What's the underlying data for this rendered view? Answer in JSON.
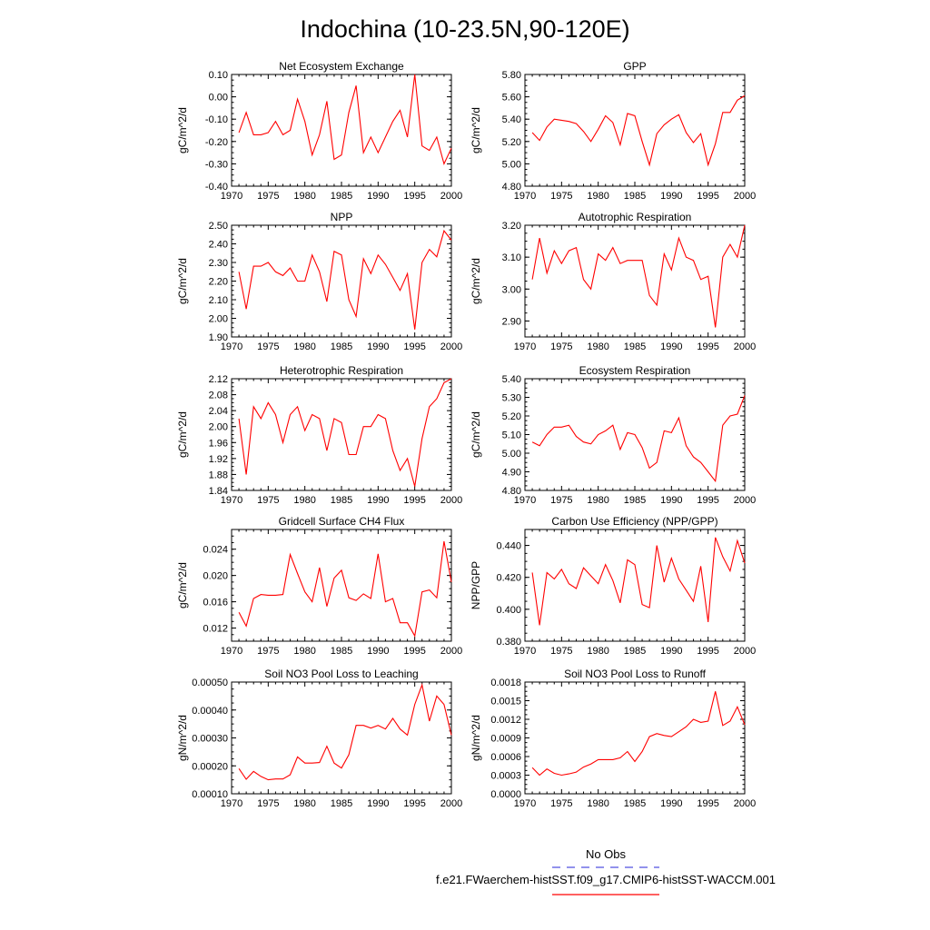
{
  "title": "Indochina (10-23.5N,90-120E)",
  "legend": [
    {
      "label": "No Obs",
      "color": "#5050e0",
      "dashed": true
    },
    {
      "label": "f.e21.FWaerchem-histSST.f09_g17.CMIP6-histSST-WACCM.001",
      "color": "#ff0000",
      "dashed": false
    }
  ],
  "chart_data": [
    {
      "type": "line",
      "title": "Net Ecosystem Exchange",
      "ylabel": "gC/m^2/d",
      "xlim": [
        1970,
        2000
      ],
      "ylim": [
        -0.4,
        0.1
      ],
      "x_ticks": [
        1970,
        1975,
        1980,
        1985,
        1990,
        1995,
        2000
      ],
      "y_ticks": [
        "0.10",
        "0.00",
        "-0.10",
        "-0.20",
        "-0.30",
        "-0.40"
      ],
      "y_tick_values": [
        0.1,
        0.0,
        -0.1,
        -0.2,
        -0.3,
        -0.4
      ],
      "series": [
        {
          "color": "#ff0000",
          "x_start": 1971,
          "values": [
            -0.16,
            -0.07,
            -0.17,
            -0.17,
            -0.16,
            -0.11,
            -0.17,
            -0.15,
            -0.01,
            -0.11,
            -0.26,
            -0.17,
            -0.02,
            -0.28,
            -0.26,
            -0.07,
            0.05,
            -0.25,
            -0.18,
            -0.25,
            -0.18,
            -0.11,
            -0.06,
            -0.18,
            0.1,
            -0.22,
            -0.24,
            -0.18,
            -0.3,
            -0.23
          ]
        }
      ]
    },
    {
      "type": "line",
      "title": "GPP",
      "ylabel": "gC/m^2/d",
      "xlim": [
        1970,
        2000
      ],
      "ylim": [
        4.8,
        5.8
      ],
      "x_ticks": [
        1970,
        1975,
        1980,
        1985,
        1990,
        1995,
        2000
      ],
      "y_ticks": [
        "5.80",
        "5.60",
        "5.40",
        "5.20",
        "5.00",
        "4.80"
      ],
      "y_tick_values": [
        5.8,
        5.6,
        5.4,
        5.2,
        5.0,
        4.8
      ],
      "series": [
        {
          "color": "#ff0000",
          "x_start": 1971,
          "values": [
            5.28,
            5.21,
            5.33,
            5.4,
            5.39,
            5.38,
            5.36,
            5.29,
            5.2,
            5.31,
            5.43,
            5.37,
            5.17,
            5.45,
            5.43,
            5.2,
            4.99,
            5.27,
            5.35,
            5.4,
            5.44,
            5.28,
            5.19,
            5.27,
            4.99,
            5.18,
            5.46,
            5.46,
            5.57,
            5.61
          ]
        }
      ]
    },
    {
      "type": "line",
      "title": "NPP",
      "ylabel": "gC/m^2/d",
      "xlim": [
        1970,
        2000
      ],
      "ylim": [
        1.9,
        2.5
      ],
      "x_ticks": [
        1970,
        1975,
        1980,
        1985,
        1990,
        1995,
        2000
      ],
      "y_ticks": [
        "2.50",
        "2.40",
        "2.30",
        "2.20",
        "2.10",
        "2.00",
        "1.90"
      ],
      "y_tick_values": [
        2.5,
        2.4,
        2.3,
        2.2,
        2.1,
        2.0,
        1.9
      ],
      "series": [
        {
          "color": "#ff0000",
          "x_start": 1971,
          "values": [
            2.25,
            2.05,
            2.28,
            2.28,
            2.3,
            2.25,
            2.23,
            2.27,
            2.2,
            2.2,
            2.34,
            2.25,
            2.09,
            2.36,
            2.34,
            2.1,
            2.01,
            2.32,
            2.24,
            2.34,
            2.29,
            2.22,
            2.15,
            2.24,
            1.94,
            2.3,
            2.37,
            2.33,
            2.47,
            2.42
          ]
        }
      ]
    },
    {
      "type": "line",
      "title": "Autotrophic Respiration",
      "ylabel": "gC/m^2/d",
      "xlim": [
        1970,
        2000
      ],
      "ylim": [
        2.85,
        3.2
      ],
      "x_ticks": [
        1970,
        1975,
        1980,
        1985,
        1990,
        1995,
        2000
      ],
      "y_ticks": [
        "3.20",
        "3.10",
        "3.00",
        "2.90"
      ],
      "y_tick_values": [
        3.2,
        3.1,
        3.0,
        2.9
      ],
      "series": [
        {
          "color": "#ff0000",
          "x_start": 1971,
          "values": [
            3.03,
            3.16,
            3.05,
            3.12,
            3.08,
            3.12,
            3.13,
            3.03,
            3.0,
            3.11,
            3.09,
            3.13,
            3.08,
            3.09,
            3.09,
            3.09,
            2.98,
            2.95,
            3.11,
            3.06,
            3.16,
            3.1,
            3.09,
            3.03,
            3.04,
            2.88,
            3.1,
            3.14,
            3.1,
            3.2
          ]
        }
      ]
    },
    {
      "type": "line",
      "title": "Heterotrophic Respiration",
      "ylabel": "gC/m^2/d",
      "xlim": [
        1970,
        2000
      ],
      "ylim": [
        1.84,
        2.12
      ],
      "x_ticks": [
        1970,
        1975,
        1980,
        1985,
        1990,
        1995,
        2000
      ],
      "y_ticks": [
        "2.12",
        "2.08",
        "2.04",
        "2.00",
        "1.96",
        "1.92",
        "1.88",
        "1.84"
      ],
      "y_tick_values": [
        2.12,
        2.08,
        2.04,
        2.0,
        1.96,
        1.92,
        1.88,
        1.84
      ],
      "series": [
        {
          "color": "#ff0000",
          "x_start": 1971,
          "values": [
            2.02,
            1.88,
            2.05,
            2.02,
            2.06,
            2.03,
            1.96,
            2.03,
            2.05,
            1.99,
            2.03,
            2.02,
            1.94,
            2.02,
            2.01,
            1.93,
            1.93,
            2.0,
            2.0,
            2.03,
            2.02,
            1.94,
            1.89,
            1.92,
            1.85,
            1.97,
            2.05,
            2.07,
            2.11,
            2.12
          ]
        }
      ]
    },
    {
      "type": "line",
      "title": "Ecosystem Respiration",
      "ylabel": "gC/m^2/d",
      "xlim": [
        1970,
        2000
      ],
      "ylim": [
        4.8,
        5.4
      ],
      "x_ticks": [
        1970,
        1975,
        1980,
        1985,
        1990,
        1995,
        2000
      ],
      "y_ticks": [
        "5.40",
        "5.30",
        "5.20",
        "5.10",
        "5.00",
        "4.90",
        "4.80"
      ],
      "y_tick_values": [
        5.4,
        5.3,
        5.2,
        5.1,
        5.0,
        4.9,
        4.8
      ],
      "series": [
        {
          "color": "#ff0000",
          "x_start": 1971,
          "values": [
            5.06,
            5.04,
            5.1,
            5.14,
            5.14,
            5.15,
            5.09,
            5.06,
            5.05,
            5.1,
            5.12,
            5.15,
            5.02,
            5.11,
            5.1,
            5.03,
            4.92,
            4.95,
            5.12,
            5.11,
            5.19,
            5.04,
            4.98,
            4.95,
            4.9,
            4.85,
            5.15,
            5.2,
            5.21,
            5.31
          ]
        }
      ]
    },
    {
      "type": "line",
      "title": "Gridcell Surface CH4 Flux",
      "ylabel": "gC/m^2/d",
      "xlim": [
        1970,
        2000
      ],
      "ylim": [
        0.01,
        0.027
      ],
      "x_ticks": [
        1970,
        1975,
        1980,
        1985,
        1990,
        1995,
        2000
      ],
      "y_ticks": [
        "0.024",
        "0.020",
        "0.016",
        "0.012"
      ],
      "y_tick_values": [
        0.024,
        0.02,
        0.016,
        0.012
      ],
      "series": [
        {
          "color": "#ff0000",
          "x_start": 1971,
          "values": [
            0.0144,
            0.0123,
            0.0165,
            0.0171,
            0.017,
            0.017,
            0.0171,
            0.0232,
            0.0203,
            0.0175,
            0.016,
            0.0212,
            0.0153,
            0.0196,
            0.0208,
            0.0166,
            0.0162,
            0.0172,
            0.0165,
            0.0233,
            0.016,
            0.0165,
            0.0128,
            0.0128,
            0.0108,
            0.0175,
            0.0178,
            0.0166,
            0.0252,
            0.019
          ]
        }
      ]
    },
    {
      "type": "line",
      "title": "Carbon Use Efficiency (NPP/GPP)",
      "ylabel": "NPP/GPP",
      "xlim": [
        1970,
        2000
      ],
      "ylim": [
        0.38,
        0.45
      ],
      "x_ticks": [
        1970,
        1975,
        1980,
        1985,
        1990,
        1995,
        2000
      ],
      "y_ticks": [
        "0.440",
        "0.420",
        "0.400",
        "0.380"
      ],
      "y_tick_values": [
        0.44,
        0.42,
        0.4,
        0.38
      ],
      "series": [
        {
          "color": "#ff0000",
          "x_start": 1971,
          "values": [
            0.423,
            0.39,
            0.423,
            0.419,
            0.425,
            0.416,
            0.413,
            0.426,
            0.421,
            0.416,
            0.428,
            0.418,
            0.404,
            0.431,
            0.428,
            0.403,
            0.401,
            0.44,
            0.417,
            0.432,
            0.419,
            0.412,
            0.405,
            0.427,
            0.392,
            0.445,
            0.433,
            0.424,
            0.443,
            0.429
          ]
        }
      ]
    },
    {
      "type": "line",
      "title": "Soil NO3 Pool Loss to Leaching",
      "ylabel": "gN/m^2/d",
      "xlim": [
        1970,
        2000
      ],
      "ylim": [
        0.0001,
        0.0005
      ],
      "x_ticks": [
        1970,
        1975,
        1980,
        1985,
        1990,
        1995,
        2000
      ],
      "y_ticks": [
        "0.00050",
        "0.00040",
        "0.00030",
        "0.00020",
        "0.00010"
      ],
      "y_tick_values": [
        0.0005,
        0.0004,
        0.0003,
        0.0002,
        0.0001
      ],
      "series": [
        {
          "color": "#ff0000",
          "x_start": 1971,
          "values": [
            0.00019,
            0.000152,
            0.00018,
            0.000162,
            0.00015,
            0.000153,
            0.000153,
            0.000168,
            0.000232,
            0.00021,
            0.00021,
            0.000212,
            0.00027,
            0.00021,
            0.000192,
            0.00024,
            0.000345,
            0.000345,
            0.000335,
            0.000345,
            0.000332,
            0.00037,
            0.000332,
            0.00031,
            0.00042,
            0.00049,
            0.00036,
            0.00045,
            0.00042,
            0.00031
          ]
        }
      ]
    },
    {
      "type": "line",
      "title": "Soil NO3 Pool Loss to Runoff",
      "ylabel": "gN/m^2/d",
      "xlim": [
        1970,
        2000
      ],
      "ylim": [
        0.0,
        0.0018
      ],
      "x_ticks": [
        1970,
        1975,
        1980,
        1985,
        1990,
        1995,
        2000
      ],
      "y_ticks": [
        "0.0018",
        "0.0015",
        "0.0012",
        "0.0009",
        "0.0006",
        "0.0003",
        "0.0000"
      ],
      "y_tick_values": [
        0.0018,
        0.0015,
        0.0012,
        0.0009,
        0.0006,
        0.0003,
        0.0
      ],
      "series": [
        {
          "color": "#ff0000",
          "x_start": 1971,
          "values": [
            0.00042,
            0.0003,
            0.0004,
            0.00033,
            0.0003,
            0.00032,
            0.00035,
            0.00043,
            0.00048,
            0.00055,
            0.00055,
            0.00055,
            0.00058,
            0.00068,
            0.00052,
            0.00068,
            0.00092,
            0.00097,
            0.00094,
            0.00092,
            0.001,
            0.00108,
            0.0012,
            0.00115,
            0.00117,
            0.00165,
            0.0011,
            0.00117,
            0.0014,
            0.00111
          ]
        }
      ]
    }
  ]
}
